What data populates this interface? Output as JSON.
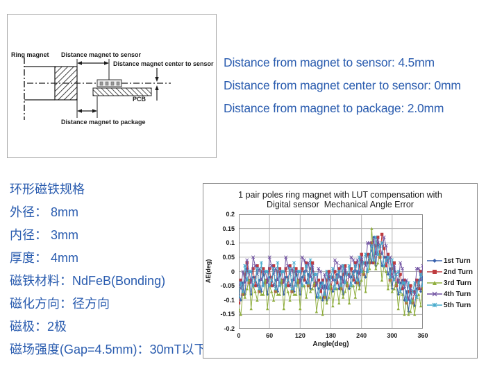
{
  "accent_color": "#2a5caf",
  "diagram": {
    "labels": {
      "ring_magnet": "Ring magnet",
      "dist_magnet_sensor": "Distance magnet to sensor",
      "dist_center_sensor": "Distance magnet center to sensor",
      "dist_magnet_package": "Distance magnet to package",
      "pcb": "PCB"
    }
  },
  "distance_notes": {
    "lines": [
      "Distance from magnet to sensor: 4.5mm",
      "Distance from magnet center to sensor: 0mm",
      "Distance from magnet to package: 2.0mm"
    ]
  },
  "magnet_spec": {
    "title": "环形磁铁规格",
    "lines": [
      "外径： 8mm",
      "内径： 3mm",
      "厚度： 4mm",
      "磁铁材料：NdFeB(Bonding)",
      "磁化方向：径方向",
      "磁极：2极",
      "磁场强度(Gap=4.5mm)：30mT以下"
    ]
  },
  "chart_data": {
    "type": "line",
    "title": "1 pair poles ring magnet with LUT compensation with Digital sensor  Mechanical Angle Error",
    "title_lines": [
      "1 pair poles ring magnet with LUT compensation with",
      "Digital sensor  Mechanical Angle Error"
    ],
    "xlabel": "Angle(deg)",
    "ylabel": "AE(deg)",
    "xlim": [
      0,
      360
    ],
    "ylim": [
      -0.2,
      0.2
    ],
    "xticks": [
      0,
      60,
      120,
      180,
      240,
      300,
      360
    ],
    "yticks": [
      0.2,
      0.15,
      0.1,
      0.05,
      0,
      -0.05,
      -0.1,
      -0.15,
      -0.2
    ],
    "ytick_labels": [
      "0.2",
      "0.15",
      "0.1",
      "0.05",
      "0",
      "-0.05",
      "-0.1",
      "-0.15",
      "-0.2"
    ],
    "grid": true,
    "legend_position": "right",
    "x_start": 0,
    "x_step": 4,
    "series": [
      {
        "name": "1st Turn",
        "color": "#3A62AD",
        "marker": "diamond",
        "values": [
          -0.08,
          -0.1,
          -0.04,
          -0.08,
          0.01,
          -0.03,
          -0.08,
          -0.02,
          -0.02,
          -0.05,
          -0.03,
          -0.07,
          -0.01,
          -0.03,
          -0.08,
          -0.02,
          -0.02,
          -0.05,
          -0.03,
          -0.07,
          -0.01,
          -0.03,
          -0.08,
          -0.02,
          -0.02,
          -0.05,
          -0.03,
          -0.07,
          -0.01,
          -0.03,
          -0.08,
          -0.02,
          0.0,
          -0.04,
          -0.01,
          -0.06,
          0.01,
          -0.04,
          -0.09,
          -0.06,
          -0.04,
          -0.1,
          -0.05,
          -0.1,
          -0.02,
          -0.05,
          -0.07,
          -0.03,
          -0.01,
          -0.06,
          -0.02,
          -0.08,
          0.0,
          -0.04,
          -0.06,
          -0.02,
          0.0,
          -0.04,
          0.0,
          -0.05,
          0.04,
          0.0,
          -0.02,
          0.03,
          0.06,
          0.03,
          0.12,
          0.02,
          0.1,
          0.06,
          0.02,
          0.05,
          0.05,
          -0.01,
          0.01,
          -0.06,
          0.01,
          -0.04,
          -0.08,
          -0.04,
          -0.03,
          -0.1,
          -0.07,
          -0.14,
          -0.07,
          -0.1,
          -0.12,
          -0.06,
          -0.03,
          -0.07,
          -0.02
        ]
      },
      {
        "name": "2nd Turn",
        "color": "#BE3C3F",
        "marker": "square",
        "values": [
          -0.11,
          -0.03,
          -0.08,
          -0.01,
          0.03,
          -0.04,
          -0.03,
          0.01,
          -0.05,
          0.02,
          -0.07,
          0.0,
          0.01,
          -0.04,
          -0.03,
          0.01,
          -0.05,
          0.02,
          -0.07,
          0.0,
          0.01,
          -0.04,
          -0.03,
          0.01,
          -0.05,
          0.02,
          -0.07,
          0.0,
          0.01,
          -0.04,
          -0.03,
          0.01,
          -0.03,
          0.03,
          -0.05,
          0.01,
          0.03,
          -0.05,
          -0.04,
          -0.03,
          -0.07,
          -0.03,
          -0.09,
          -0.03,
          0.0,
          -0.06,
          -0.02,
          0.0,
          -0.04,
          0.01,
          -0.06,
          -0.01,
          0.02,
          -0.05,
          -0.01,
          0.01,
          -0.03,
          0.03,
          -0.04,
          0.02,
          0.06,
          -0.01,
          0.03,
          0.06,
          0.03,
          0.1,
          0.03,
          0.09,
          0.12,
          0.05,
          0.13,
          0.08,
          0.02,
          0.06,
          -0.03,
          0.01,
          0.03,
          -0.05,
          -0.03,
          -0.01,
          -0.06,
          -0.03,
          -0.11,
          -0.07,
          -0.05,
          -0.11,
          -0.07,
          -0.03,
          -0.06,
          0.0,
          -0.06
        ]
      },
      {
        "name": "3rd Turn",
        "color": "#8FAE3E",
        "marker": "triangle",
        "values": [
          -0.13,
          -0.15,
          -0.07,
          -0.09,
          -0.06,
          -0.03,
          -0.13,
          -0.05,
          -0.07,
          -0.1,
          -0.06,
          -0.08,
          -0.08,
          -0.03,
          -0.13,
          -0.05,
          -0.07,
          -0.1,
          -0.06,
          -0.08,
          -0.08,
          -0.03,
          -0.13,
          -0.05,
          -0.07,
          -0.1,
          -0.06,
          -0.08,
          -0.08,
          -0.03,
          -0.13,
          -0.05,
          -0.05,
          -0.09,
          -0.04,
          -0.07,
          -0.06,
          -0.04,
          -0.14,
          -0.09,
          -0.09,
          -0.15,
          -0.08,
          -0.11,
          -0.09,
          -0.05,
          -0.12,
          -0.06,
          -0.06,
          -0.11,
          -0.05,
          -0.09,
          -0.07,
          -0.04,
          -0.11,
          -0.05,
          -0.05,
          -0.09,
          -0.03,
          -0.06,
          -0.03,
          0.0,
          -0.07,
          0.0,
          0.01,
          0.15,
          0.04,
          0.01,
          0.03,
          0.06,
          -0.03,
          0.02,
          0.0,
          -0.06,
          -0.02,
          -0.07,
          -0.06,
          -0.04,
          -0.13,
          -0.07,
          -0.08,
          -0.15,
          -0.1,
          -0.15,
          -0.14,
          -0.1,
          -0.15,
          -0.09,
          -0.08,
          -0.12,
          -0.05
        ]
      },
      {
        "name": "4th Turn",
        "color": "#6E4FA0",
        "marker": "x",
        "values": [
          -0.04,
          -0.06,
          0.0,
          -0.04,
          0.04,
          0.0,
          -0.04,
          0.05,
          0.02,
          -0.01,
          0.01,
          -0.03,
          0.0,
          0.0,
          -0.04,
          0.05,
          0.02,
          -0.01,
          0.01,
          -0.03,
          0.0,
          0.0,
          -0.04,
          0.05,
          0.02,
          -0.01,
          0.01,
          -0.03,
          0.0,
          0.0,
          -0.04,
          0.05,
          0.04,
          0.0,
          0.03,
          -0.02,
          0.02,
          -0.01,
          -0.05,
          0.01,
          0.0,
          -0.06,
          -0.01,
          -0.06,
          -0.01,
          -0.02,
          -0.03,
          0.04,
          0.03,
          -0.02,
          0.02,
          -0.04,
          0.01,
          -0.01,
          -0.02,
          0.05,
          0.04,
          0.0,
          0.04,
          -0.01,
          0.05,
          0.03,
          0.02,
          0.1,
          0.1,
          0.07,
          0.11,
          0.06,
          0.11,
          0.09,
          0.06,
          0.12,
          0.09,
          0.03,
          0.05,
          -0.02,
          0.02,
          -0.01,
          -0.04,
          0.03,
          0.01,
          -0.06,
          -0.03,
          -0.1,
          -0.06,
          -0.07,
          -0.08,
          0.01,
          0.01,
          -0.03,
          0.02
        ]
      },
      {
        "name": "5th Turn",
        "color": "#44A9CB",
        "marker": "star",
        "values": [
          -0.09,
          -0.04,
          -0.07,
          0.02,
          -0.03,
          0.0,
          0.0,
          -0.05,
          -0.03,
          0.01,
          -0.06,
          0.03,
          -0.05,
          0.0,
          0.0,
          -0.05,
          -0.03,
          0.01,
          -0.06,
          0.03,
          -0.05,
          0.0,
          0.0,
          -0.05,
          -0.03,
          0.01,
          -0.06,
          0.03,
          -0.05,
          0.0,
          0.0,
          -0.05,
          -0.01,
          0.02,
          -0.04,
          0.04,
          -0.03,
          -0.01,
          -0.01,
          -0.09,
          -0.05,
          -0.04,
          -0.08,
          0.0,
          -0.06,
          -0.02,
          0.01,
          -0.06,
          -0.02,
          0.0,
          -0.05,
          0.02,
          -0.04,
          -0.01,
          0.02,
          -0.05,
          -0.01,
          0.02,
          -0.03,
          0.05,
          0.0,
          0.03,
          0.06,
          0.0,
          0.05,
          0.09,
          0.04,
          0.12,
          0.06,
          0.09,
          0.1,
          0.02,
          0.04,
          0.05,
          -0.02,
          0.04,
          -0.03,
          -0.01,
          0.0,
          -0.07,
          -0.04,
          -0.04,
          -0.1,
          -0.04,
          -0.11,
          -0.07,
          -0.04,
          -0.09,
          -0.04,
          -0.01,
          -0.05
        ]
      }
    ]
  }
}
